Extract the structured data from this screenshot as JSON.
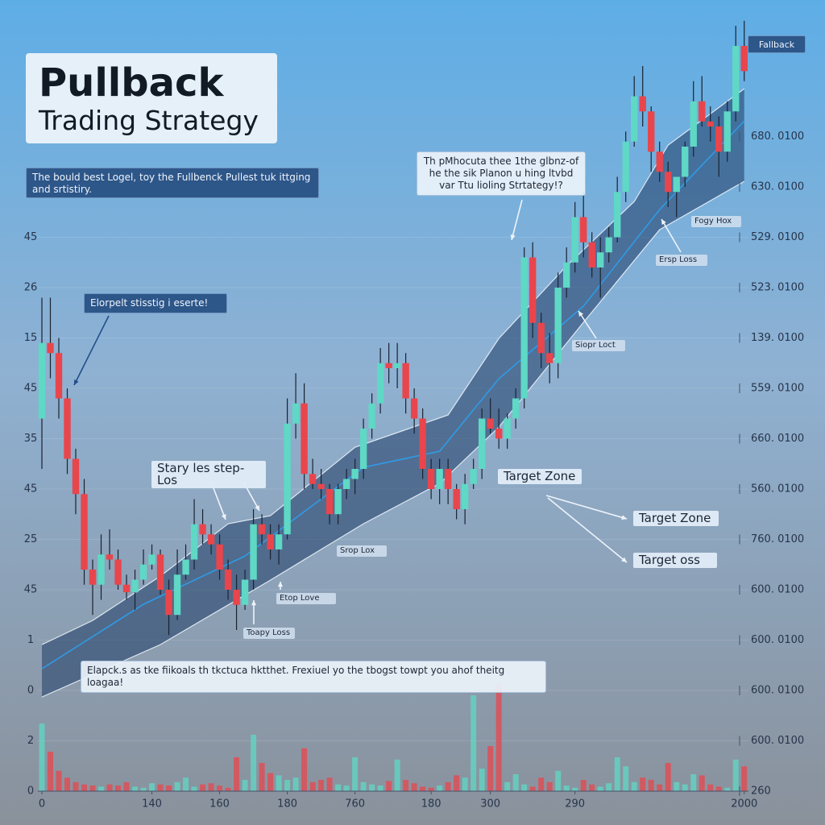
{
  "chart_data": {
    "type": "candlestick",
    "title": "Pullback",
    "subtitle": "Trading Strategy",
    "description": "The bould best Logel, toy the Fullbenck Pullest tuk ittging and srtistiry.",
    "badge": "Fallback",
    "x": [
      0,
      1,
      2,
      3,
      4,
      5,
      6,
      7,
      8,
      9,
      10,
      11,
      12,
      13,
      14,
      15,
      16,
      17,
      18,
      19,
      20,
      21,
      22,
      23,
      24,
      25,
      26,
      27,
      28,
      29,
      30,
      31,
      32,
      33,
      34,
      35,
      36,
      37,
      38,
      39,
      40,
      41,
      42,
      43,
      44,
      45,
      46,
      47,
      48,
      49,
      50,
      51,
      52,
      53,
      54,
      55,
      56,
      57,
      58,
      59,
      60,
      61,
      62,
      63,
      64,
      65,
      66,
      67,
      68,
      69,
      70,
      71,
      72,
      73,
      74,
      75,
      76,
      77,
      78,
      79,
      80,
      81,
      82,
      83
    ],
    "open": [
      7.4,
      8.9,
      8.7,
      7.8,
      6.6,
      5.9,
      4.4,
      4.1,
      4.7,
      4.6,
      4.1,
      3.95,
      4.2,
      4.5,
      4.7,
      4.0,
      3.5,
      4.3,
      4.6,
      5.3,
      5.1,
      4.9,
      4.4,
      4.0,
      3.7,
      4.2,
      5.3,
      5.1,
      4.8,
      5.1,
      7.3,
      7.7,
      6.3,
      6.1,
      6.0,
      5.5,
      6.0,
      6.2,
      6.4,
      7.2,
      7.7,
      8.5,
      8.4,
      8.5,
      7.8,
      7.4,
      6.4,
      6.0,
      6.4,
      6.0,
      5.6,
      6.1,
      6.4,
      7.4,
      7.2,
      7.0,
      7.4,
      7.8,
      10.6,
      9.3,
      8.7,
      8.5,
      10.0,
      10.5,
      11.4,
      10.9,
      10.4,
      10.7,
      11.0,
      11.9,
      12.9,
      13.8,
      13.5,
      12.7,
      12.3,
      11.9,
      12.2,
      12.8,
      13.7,
      13.3,
      13.2,
      12.7,
      13.5,
      14.8
    ],
    "high": [
      9.8,
      9.8,
      9.0,
      8.0,
      6.8,
      6.2,
      4.6,
      5.1,
      5.2,
      4.8,
      4.3,
      4.4,
      4.8,
      4.9,
      4.8,
      4.2,
      4.8,
      4.9,
      5.8,
      5.6,
      5.3,
      5.1,
      4.6,
      4.3,
      4.4,
      5.6,
      5.5,
      5.3,
      5.3,
      7.8,
      8.3,
      8.1,
      6.6,
      6.4,
      6.1,
      6.1,
      6.4,
      6.6,
      7.4,
      7.9,
      8.8,
      8.9,
      8.9,
      8.7,
      8.0,
      7.6,
      6.6,
      6.6,
      6.6,
      6.1,
      6.3,
      6.6,
      7.6,
      7.8,
      7.6,
      7.5,
      8.0,
      10.8,
      10.9,
      9.5,
      9.1,
      10.3,
      10.8,
      11.7,
      11.9,
      11.1,
      11.0,
      11.2,
      12.2,
      13.1,
      14.2,
      14.4,
      13.6,
      12.9,
      12.5,
      12.2,
      12.9,
      14.1,
      14.2,
      13.6,
      13.4,
      13.7,
      15.2,
      15.3
    ],
    "low": [
      6.4,
      8.2,
      7.4,
      6.3,
      5.5,
      4.1,
      3.5,
      3.8,
      4.4,
      4.0,
      3.8,
      3.6,
      4.1,
      4.4,
      3.9,
      3.1,
      3.4,
      4.2,
      4.4,
      4.9,
      4.7,
      4.2,
      3.8,
      3.2,
      3.6,
      4.0,
      4.9,
      4.6,
      4.5,
      5.0,
      7.0,
      6.0,
      6.0,
      5.8,
      5.3,
      5.3,
      5.8,
      5.9,
      6.2,
      7.0,
      7.5,
      8.1,
      8.0,
      7.5,
      7.1,
      6.2,
      5.8,
      5.7,
      5.7,
      5.4,
      5.3,
      6.0,
      6.2,
      7.1,
      6.8,
      6.8,
      7.2,
      7.6,
      9.0,
      8.4,
      8.1,
      8.2,
      9.8,
      10.3,
      10.6,
      10.2,
      9.8,
      10.5,
      10.9,
      11.7,
      12.8,
      13.2,
      12.3,
      12.1,
      11.6,
      11.4,
      12.0,
      12.6,
      13.2,
      12.9,
      12.2,
      12.5,
      13.3,
      14.1
    ],
    "close": [
      8.9,
      8.7,
      7.8,
      6.6,
      5.9,
      4.4,
      4.1,
      4.7,
      4.6,
      4.1,
      3.95,
      4.2,
      4.5,
      4.7,
      4.0,
      3.5,
      4.3,
      4.6,
      5.3,
      5.1,
      4.9,
      4.4,
      4.0,
      3.7,
      4.2,
      5.3,
      5.1,
      4.8,
      5.1,
      7.3,
      7.7,
      6.3,
      6.1,
      6.0,
      5.5,
      6.0,
      6.2,
      6.4,
      7.2,
      7.7,
      8.5,
      8.4,
      8.5,
      7.8,
      7.4,
      6.4,
      6.0,
      6.4,
      6.0,
      5.6,
      6.1,
      6.4,
      7.4,
      7.2,
      7.0,
      7.4,
      7.8,
      10.6,
      9.3,
      8.7,
      8.5,
      10.0,
      10.5,
      11.4,
      10.9,
      10.4,
      10.7,
      11.0,
      11.9,
      12.9,
      13.8,
      13.5,
      12.7,
      12.3,
      11.9,
      12.2,
      12.8,
      13.7,
      13.3,
      13.2,
      12.7,
      13.5,
      14.8,
      14.3
    ],
    "up_color": "#5fd8c6",
    "down_color": "#e8464c",
    "volume": [
      60,
      35,
      18,
      12,
      8,
      6,
      5,
      4,
      6,
      5,
      8,
      4,
      3,
      7,
      6,
      5,
      8,
      12,
      4,
      6,
      7,
      5,
      3,
      30,
      10,
      50,
      25,
      16,
      14,
      10,
      12,
      38,
      8,
      10,
      12,
      6,
      5,
      30,
      8,
      6,
      5,
      9,
      28,
      10,
      7,
      4,
      3,
      5,
      8,
      14,
      12,
      85,
      20,
      40,
      95,
      8,
      15,
      6,
      4,
      12,
      8,
      18,
      5,
      3,
      10,
      6,
      4,
      7,
      30,
      22,
      8,
      12,
      10,
      6,
      25,
      8,
      6,
      15,
      14,
      6,
      4,
      3,
      28,
      22
    ],
    "volume_ylim": [
      0,
      100
    ],
    "channel": {
      "upper": {
        "x": [
          0,
          6,
          14,
          22,
          27,
          37,
          48,
          54,
          62,
          70,
          74,
          83
        ],
        "values": [
          2.91,
          3.39,
          4.27,
          5.31,
          5.47,
          6.83,
          7.47,
          8.99,
          10.43,
          11.71,
          12.83,
          13.95
        ]
      },
      "middle": {
        "x": [
          0,
          12,
          24,
          38,
          47,
          54,
          64,
          73,
          83
        ],
        "values": [
          2.43,
          3.71,
          4.67,
          6.43,
          6.75,
          8.19,
          9.63,
          11.55,
          13.31
        ]
      },
      "lower": {
        "x": [
          0,
          14,
          27,
          38,
          47,
          54,
          64,
          73,
          83
        ],
        "values": [
          1.87,
          2.91,
          4.19,
          5.31,
          6.11,
          7.23,
          9.31,
          11.15,
          12.11
        ]
      }
    },
    "channel_color": "#1f3d66",
    "middle_color": "#2f9be6",
    "annotations": [
      "Elorpelt stisstig i eserte!",
      "Th pMhocuta thee 1the glbnz-of he the sik Planon u hing ltvbd var Ttu lioling Strtategy!?",
      "Stary les step-Los",
      "Target Zone",
      "Target Zone",
      "Target oss",
      "Srop Lox",
      "Etop Love",
      "Toapy Loss",
      "Siopr Loct",
      "Ersp Loss",
      "Fogy Hox",
      "Elapck.s as tke fiikoals th tkctuca hktthet. Frexiuel yo the tbogst towpt you ahof theitg loagaa!"
    ],
    "xlim": [
      -0.5,
      83.5
    ],
    "xticks": [
      0,
      {
        "value": 13,
        "label": "140"
      },
      {
        "value": 21,
        "label": "160"
      },
      {
        "value": 29,
        "label": "180"
      },
      {
        "value": 37,
        "label": "760"
      },
      {
        "value": 46,
        "label": "180"
      },
      {
        "value": 53,
        "label": "300"
      },
      {
        "value": 63,
        "label": "290"
      },
      {
        "value": 83,
        "label": "2000"
      }
    ],
    "ylim": [
      0,
      15.5
    ],
    "yticks": [
      0,
      {
        "value": 1,
        "label": "2"
      },
      {
        "value": 2,
        "label": "0"
      },
      {
        "value": 3,
        "label": "1"
      },
      {
        "value": 4,
        "label": "45"
      },
      {
        "value": 5,
        "label": "25"
      },
      {
        "value": 6,
        "label": "45"
      },
      {
        "value": 7,
        "label": "35"
      },
      {
        "value": 8,
        "label": "45"
      },
      {
        "value": 9,
        "label": "15"
      },
      {
        "value": 10,
        "label": "26"
      },
      {
        "value": 11,
        "label": "45"
      }
    ],
    "y2lim": [
      0,
      15.5
    ],
    "y2ticks": [
      {
        "value": 0,
        "label": "260"
      },
      {
        "value": 1,
        "label": "600. 0100"
      },
      {
        "value": 2,
        "label": "600. 0100"
      },
      {
        "value": 3,
        "label": "600. 0100"
      },
      {
        "value": 4,
        "label": "600. 0100"
      },
      {
        "value": 5,
        "label": "760. 0100"
      },
      {
        "value": 6,
        "label": "560. 0100"
      },
      {
        "value": 7,
        "label": "660. 0100"
      },
      {
        "value": 8,
        "label": "559. 0100"
      },
      {
        "value": 9,
        "label": "139. 0100"
      },
      {
        "value": 10,
        "label": "523. 0100"
      },
      {
        "value": 11,
        "label": "529. 0100"
      },
      {
        "value": 12,
        "label": "630. 0100"
      },
      {
        "value": 13,
        "label": "680. 0100"
      }
    ],
    "grid": true
  }
}
